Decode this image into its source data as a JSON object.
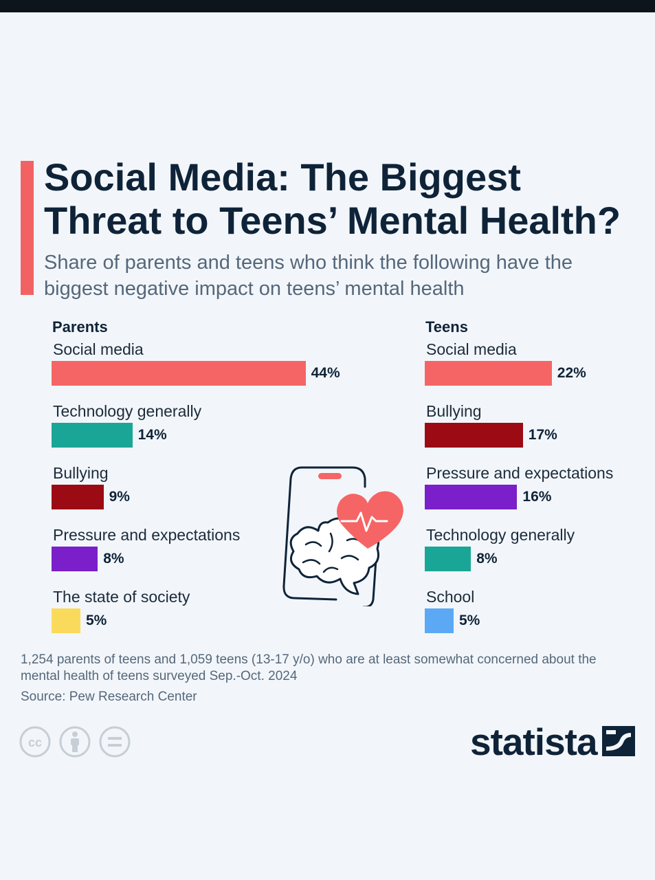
{
  "title": "Social Media: The Biggest Threat to Teens’ Mental Health?",
  "subtitle": "Share of parents and teens who think the following have the biggest negative impact on teens’ mental health",
  "colors": {
    "accent": "#f26262",
    "social_media": "#f56565",
    "technology": "#1aa697",
    "bullying": "#9c0a14",
    "pressure": "#7a1fc9",
    "society": "#fada5b",
    "school": "#5ba9f5",
    "text_dark": "#0f2338"
  },
  "chart_data": [
    {
      "type": "bar",
      "group": "Parents",
      "categories": [
        "Social media",
        "Technology generally",
        "Bullying",
        "Pressure and expectations",
        "The state of society"
      ],
      "values": [
        44,
        14,
        9,
        8,
        5
      ],
      "value_labels": [
        "44%",
        "14%",
        "9%",
        "8%",
        "5%"
      ],
      "bar_colors": [
        "#f56565",
        "#1aa697",
        "#9c0a14",
        "#7a1fc9",
        "#fada5b"
      ],
      "unit": "%"
    },
    {
      "type": "bar",
      "group": "Teens",
      "categories": [
        "Social media",
        "Bullying",
        "Pressure and expectations",
        "Technology generally",
        "School"
      ],
      "values": [
        22,
        17,
        16,
        8,
        5
      ],
      "value_labels": [
        "22%",
        "17%",
        "16%",
        "8%",
        "5%"
      ],
      "bar_colors": [
        "#f56565",
        "#9c0a14",
        "#7a1fc9",
        "#1aa697",
        "#5ba9f5"
      ],
      "unit": "%"
    }
  ],
  "illustration": {
    "icons": [
      "smartphone-icon",
      "heart-pulse-icon",
      "brain-icon"
    ]
  },
  "footnote": "1,254 parents of teens and 1,059 teens (13-17 y/o) who are at least somewhat concerned about the mental health of teens surveyed Sep.-Oct. 2024",
  "source": "Source: Pew Research Center",
  "license_icons": [
    "cc-icon",
    "attribution-icon",
    "no-derivatives-icon"
  ],
  "logo": {
    "text": "statista"
  }
}
